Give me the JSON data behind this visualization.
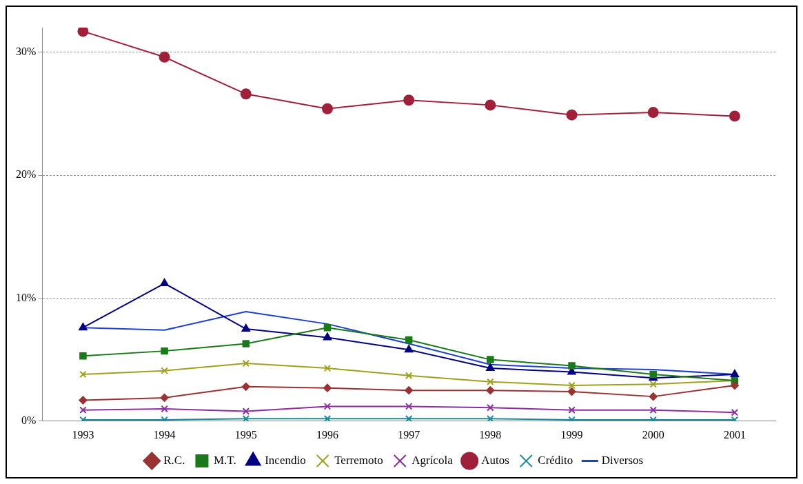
{
  "chart_data": {
    "type": "line",
    "categories": [
      "1993",
      "1994",
      "1995",
      "1996",
      "1997",
      "1998",
      "1999",
      "2000",
      "2001"
    ],
    "ylim": [
      0,
      32
    ],
    "yticks": [
      {
        "value": 0,
        "label": "0%"
      },
      {
        "value": 10,
        "label": "10%"
      },
      {
        "value": 20,
        "label": "20%"
      },
      {
        "value": 30,
        "label": "30%"
      }
    ],
    "grid": "y",
    "legend": "bottom",
    "line_style": "solid",
    "series": [
      {
        "name": "R.C.",
        "color": "#993333",
        "marker": "diamond",
        "values": [
          1.7,
          1.9,
          2.8,
          2.7,
          2.5,
          2.5,
          2.4,
          2.0,
          2.9
        ]
      },
      {
        "name": "M.T.",
        "color": "#1a7a1a",
        "marker": "square",
        "values": [
          5.3,
          5.7,
          6.3,
          7.6,
          6.6,
          5.0,
          4.5,
          3.8,
          3.3
        ]
      },
      {
        "name": "Incendio",
        "color": "#000080",
        "marker": "triangle",
        "values": [
          7.6,
          11.2,
          7.5,
          6.8,
          5.8,
          4.3,
          4.0,
          3.5,
          3.8
        ]
      },
      {
        "name": "Terremoto",
        "color": "#a0a020",
        "marker": "cross",
        "values": [
          3.8,
          4.1,
          4.7,
          4.3,
          3.7,
          3.2,
          2.9,
          3.0,
          3.3
        ]
      },
      {
        "name": "Agrícola",
        "color": "#8b2fa0",
        "marker": "cross",
        "values": [
          0.9,
          1.0,
          0.8,
          1.2,
          1.2,
          1.1,
          0.9,
          0.9,
          0.7
        ]
      },
      {
        "name": "Autos",
        "color": "#a0203a",
        "marker": "circle",
        "values": [
          31.7,
          29.6,
          26.6,
          25.4,
          26.1,
          25.7,
          24.9,
          25.1,
          24.8
        ]
      },
      {
        "name": "Crédito",
        "color": "#1a8a9a",
        "marker": "cross",
        "values": [
          0.1,
          0.1,
          0.2,
          0.2,
          0.2,
          0.2,
          0.1,
          0.1,
          0.1
        ]
      },
      {
        "name": "Diversos",
        "color": "#1f3fcf",
        "marker": "none",
        "values": [
          7.6,
          7.4,
          8.9,
          7.9,
          6.3,
          4.6,
          4.3,
          4.2,
          3.8
        ]
      }
    ]
  }
}
